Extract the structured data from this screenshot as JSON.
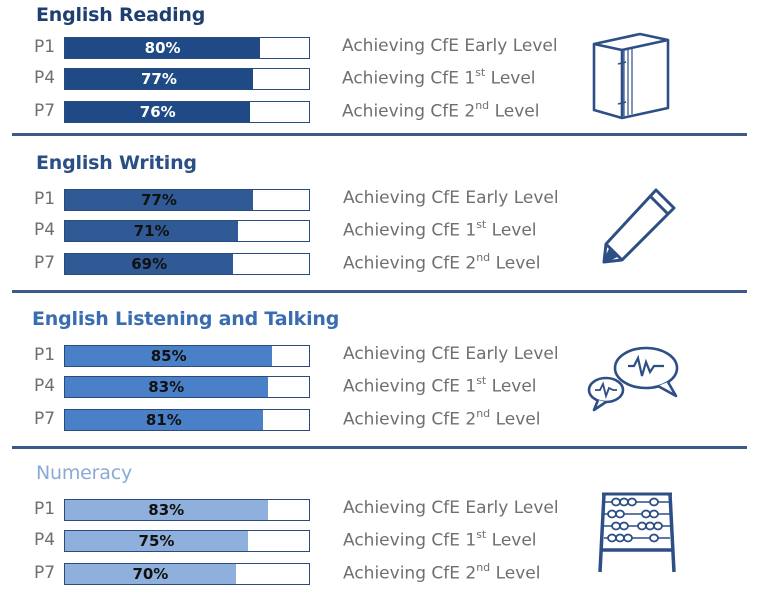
{
  "chart_data": [
    {
      "type": "bar",
      "title": "English Reading",
      "categories": [
        "P1",
        "P4",
        "P7"
      ],
      "values": [
        80,
        77,
        76
      ],
      "value_labels": [
        "80%",
        "77%",
        "76%"
      ],
      "ylim": [
        0,
        100
      ],
      "annotations": [
        {
          "text": "Achieving CfE Early Level",
          "sup": ""
        },
        {
          "text": "Achieving CfE 1",
          "sup": "st",
          "after": " Level"
        },
        {
          "text": "Achieving CfE 2",
          "sup": "nd",
          "after": " Level"
        }
      ],
      "colors": {
        "fill": "#1f4a86",
        "text": "#ffffff",
        "title": "#1f3f73"
      },
      "icon": "book-icon"
    },
    {
      "type": "bar",
      "title": "English Writing",
      "categories": [
        "P1",
        "P4",
        "P7"
      ],
      "values": [
        77,
        71,
        69
      ],
      "value_labels": [
        "77%",
        "71%",
        "69%"
      ],
      "ylim": [
        0,
        100
      ],
      "annotations": [
        {
          "text": "Achieving CfE Early Level",
          "sup": ""
        },
        {
          "text": "Achieving CfE 1",
          "sup": "st",
          "after": " Level"
        },
        {
          "text": "Achieving CfE 2",
          "sup": "nd",
          "after": " Level"
        }
      ],
      "colors": {
        "fill": "#2f5a96",
        "text": "#111111",
        "title": "#2a4f86"
      },
      "icon": "pencil-icon"
    },
    {
      "type": "bar",
      "title": "English Listening and Talking",
      "categories": [
        "P1",
        "P4",
        "P7"
      ],
      "values": [
        85,
        83,
        81
      ],
      "value_labels": [
        "85%",
        "83%",
        "81%"
      ],
      "ylim": [
        0,
        100
      ],
      "annotations": [
        {
          "text": "Achieving CfE Early Level",
          "sup": ""
        },
        {
          "text": "Achieving CfE 1",
          "sup": "st",
          "after": " Level"
        },
        {
          "text": "Achieving CfE 2",
          "sup": "nd",
          "after": " Level"
        }
      ],
      "colors": {
        "fill": "#4a80c8",
        "text": "#111111",
        "title": "#3a6cb0"
      },
      "icon": "speech-bubbles-icon"
    },
    {
      "type": "bar",
      "title": "Numeracy",
      "categories": [
        "P1",
        "P4",
        "P7"
      ],
      "values": [
        83,
        75,
        70
      ],
      "value_labels": [
        "83%",
        "75%",
        "70%"
      ],
      "ylim": [
        0,
        100
      ],
      "annotations": [
        {
          "text": "Achieving CfE Early Level",
          "sup": ""
        },
        {
          "text": "Achieving CfE 1",
          "sup": "st",
          "after": " Level"
        },
        {
          "text": "Achieving CfE 2",
          "sup": "nd",
          "after": " Level"
        }
      ],
      "colors": {
        "fill": "#8fb0dc",
        "text": "#111111",
        "title": "#8aaad6"
      },
      "icon": "abacus-icon"
    }
  ]
}
